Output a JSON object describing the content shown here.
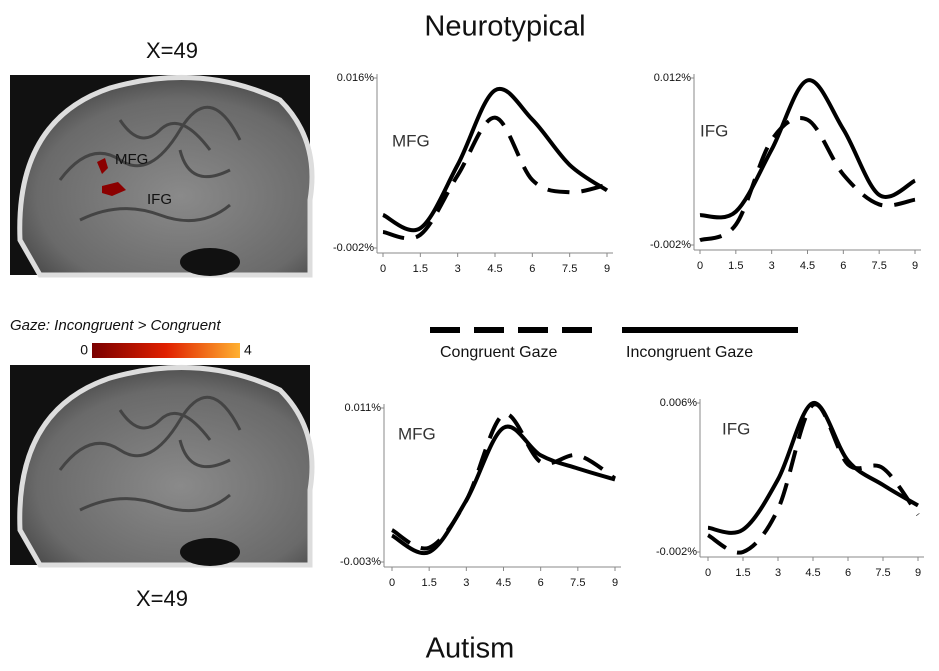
{
  "header": {
    "title": "Neurotypical",
    "footer": "Autism"
  },
  "brains": [
    {
      "label": "X=49",
      "regions": [
        "MFG",
        "IFG"
      ]
    },
    {
      "label": "X=49"
    }
  ],
  "colorbar": {
    "label": "Gaze: Incongruent > Congruent",
    "min": "0",
    "max": "4"
  },
  "legend": [
    {
      "label": "Congruent Gaze",
      "dash": true
    },
    {
      "label": "Incongruent Gaze",
      "dash": false
    }
  ],
  "chart_data": [
    {
      "type": "line",
      "annotation": "MFG",
      "x": [
        0,
        1.5,
        3,
        4.5,
        6,
        7.5,
        9
      ],
      "xlim": [
        0,
        9
      ],
      "xticks": [
        0,
        1.5,
        3,
        4.5,
        6,
        7.5,
        9
      ],
      "ylim": [
        -0.002,
        0.016
      ],
      "yticks": [
        {
          "value": -0.002,
          "label": "-0.002%"
        },
        {
          "value": 0.016,
          "label": "0.016%"
        }
      ],
      "series": [
        {
          "dash": false,
          "color": "#000000",
          "values": [
            0.0015,
            0.0001,
            0.0068,
            0.0147,
            0.0116,
            0.0068,
            0.0041
          ]
        },
        {
          "dash": true,
          "color": "#000000",
          "values": [
            -0.0003,
            -0.0006,
            0.0057,
            0.0118,
            0.0052,
            0.0039,
            0.0047
          ]
        }
      ]
    },
    {
      "type": "line",
      "annotation": "IFG",
      "x": [
        0,
        1.5,
        3,
        4.5,
        6,
        7.5,
        9
      ],
      "xlim": [
        0,
        9
      ],
      "xticks": [
        0,
        1.5,
        3,
        4.5,
        6,
        7.5,
        9
      ],
      "ylim": [
        -0.002,
        0.012
      ],
      "yticks": [
        {
          "value": -0.002,
          "label": "-0.002%"
        },
        {
          "value": 0.012,
          "label": "0.012%"
        }
      ],
      "series": [
        {
          "dash": false,
          "color": "#000000",
          "values": [
            0.0005,
            0.0008,
            0.006,
            0.0118,
            0.0077,
            0.0022,
            0.0034
          ]
        },
        {
          "dash": true,
          "color": "#000000",
          "values": [
            -0.0016,
            -0.0003,
            0.0068,
            0.0085,
            0.0039,
            0.0014,
            0.0018
          ]
        }
      ]
    },
    {
      "type": "line",
      "annotation": "MFG",
      "x": [
        0,
        1.5,
        3,
        4.5,
        6,
        7.5,
        9
      ],
      "xlim": [
        0,
        9
      ],
      "xticks": [
        0,
        1.5,
        3,
        4.5,
        6,
        7.5,
        9
      ],
      "ylim": [
        -0.003,
        0.011
      ],
      "yticks": [
        {
          "value": -0.003,
          "label": "-0.003%"
        },
        {
          "value": 0.011,
          "label": "0.011%"
        }
      ],
      "series": [
        {
          "dash": false,
          "color": "#000000",
          "values": [
            -0.0006,
            -0.0021,
            0.0026,
            0.0092,
            0.0067,
            0.0055,
            0.0045
          ]
        },
        {
          "dash": true,
          "color": "#000000",
          "values": [
            -0.0001,
            -0.0017,
            0.0026,
            0.0104,
            0.0061,
            0.0067,
            0.0046
          ]
        }
      ]
    },
    {
      "type": "line",
      "annotation": "IFG",
      "x": [
        0,
        1.5,
        3,
        4.5,
        6,
        7.5,
        9
      ],
      "xlim": [
        0,
        9
      ],
      "xticks": [
        0,
        1.5,
        3,
        4.5,
        6,
        7.5,
        9
      ],
      "ylim": [
        -0.002,
        0.006
      ],
      "yticks": [
        {
          "value": -0.002,
          "label": "-0.002%"
        },
        {
          "value": 0.006,
          "label": "0.006%"
        }
      ],
      "series": [
        {
          "dash": false,
          "color": "#000000",
          "values": [
            -0.0007,
            -0.0008,
            0.0019,
            0.006,
            0.0029,
            0.0016,
            0.0005
          ]
        },
        {
          "dash": true,
          "color": "#000000",
          "values": [
            -0.0011,
            -0.002,
            0.0003,
            0.0059,
            0.0027,
            0.0025,
            0.0
          ]
        }
      ]
    }
  ]
}
